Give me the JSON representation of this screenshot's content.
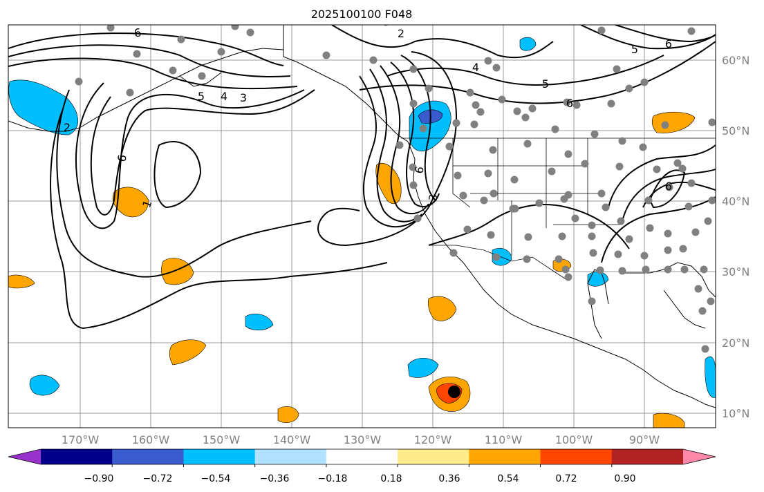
{
  "title": "2025100100 F048",
  "map": {
    "lat_labels": [
      "60°N",
      "50°N",
      "40°N",
      "30°N",
      "20°N",
      "10°N"
    ],
    "lon_labels": [
      "170°W",
      "160°W",
      "150°W",
      "140°W",
      "130°W",
      "120°W",
      "110°W",
      "100°W",
      "90°W"
    ],
    "contour_labels": [
      "6",
      "2",
      "6",
      "5",
      "4",
      "3",
      "6",
      "1",
      "2",
      "4",
      "5",
      "5",
      "6",
      "6",
      "3",
      "6"
    ]
  },
  "colorbar": {
    "tick_labels": [
      "−0.90",
      "−0.72",
      "−0.54",
      "−0.36",
      "−0.18",
      "0.18",
      "0.36",
      "0.54",
      "0.72",
      "0.90"
    ],
    "colors": [
      "#9932cc",
      "#00008b",
      "#3a5bcd",
      "#00bfff",
      "#b0e2ff",
      "#ffffff",
      "#ffeb8a",
      "#ffa500",
      "#ff4500",
      "#b22222",
      "#ff88aa"
    ]
  },
  "colors": {
    "land": "#ffffff",
    "grid": "#999999",
    "station": "#808080"
  }
}
